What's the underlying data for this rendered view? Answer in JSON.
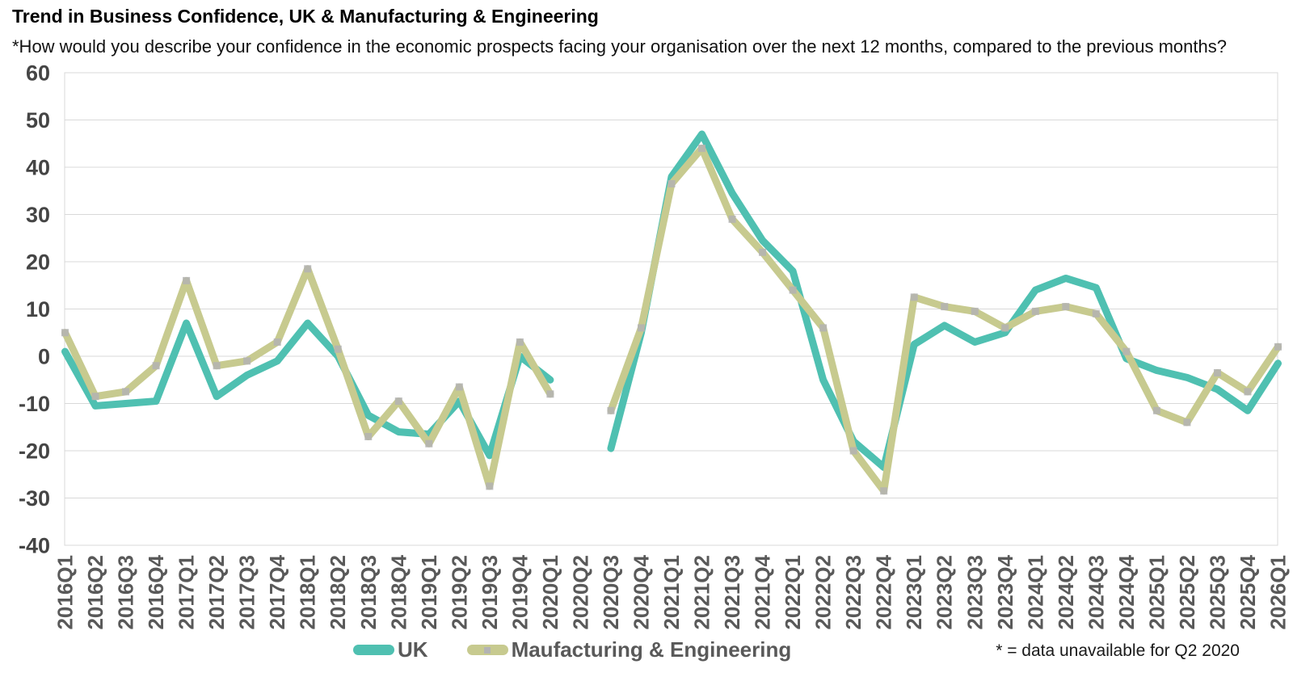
{
  "header": {
    "title": "Trend in Business Confidence, UK & Manufacturing & Engineering",
    "subtitle": "*How would you describe your confidence in the economic prospects facing your organisation over the next 12 months, compared to the previous months?"
  },
  "footnote": "* = data unavailable for Q2 2020",
  "chart_data": {
    "type": "line",
    "title": "Trend in Business Confidence, UK & Manufacturing & Engineering",
    "categories": [
      "2016Q1",
      "2016Q2",
      "2016Q3",
      "2016Q4",
      "2017Q1",
      "2017Q2",
      "2017Q3",
      "2017Q4",
      "2018Q1",
      "2018Q2",
      "2018Q3",
      "2018Q4",
      "2019Q1",
      "2019Q2",
      "2019Q3",
      "2019Q4",
      "2020Q1",
      "2020Q2",
      "2020Q3",
      "2020Q4",
      "2021Q1",
      "2021Q2",
      "2021Q3",
      "2021Q4",
      "2022Q1",
      "2022Q2",
      "2022Q3",
      "2022Q4",
      "2023Q1",
      "2023Q2",
      "2023Q3",
      "2023Q4",
      "2024Q1",
      "2024Q2",
      "2024Q3",
      "2024Q4",
      "2025Q1",
      "2025Q2",
      "2025Q3",
      "2025Q4",
      "2026Q1"
    ],
    "series": [
      {
        "name": "UK",
        "color": "#4fc0b1",
        "values": [
          1,
          -10.5,
          -10,
          -9.5,
          7,
          -8.5,
          -4,
          -1,
          7,
          0,
          -12.5,
          -16,
          -16.5,
          -9.5,
          -21,
          0,
          -5,
          null,
          -19.5,
          5,
          38,
          47,
          34.5,
          24.5,
          18,
          -5,
          -18,
          -23.5,
          2.5,
          6.5,
          3,
          5,
          14,
          16.5,
          14.5,
          -0.5,
          -3,
          -4.5,
          -7,
          -11.5,
          -1.5
        ]
      },
      {
        "name": "Maufacturing & Engineering",
        "color": "#c7ca8f",
        "marker": {
          "shape": "square",
          "color": "#b3b3b3"
        },
        "values": [
          5,
          -8.5,
          -7.5,
          -2,
          16,
          -2,
          -1,
          3,
          18.5,
          1.5,
          -17,
          -9.5,
          -18.5,
          -6.5,
          -27.5,
          3,
          -8,
          null,
          -11.5,
          6,
          36.5,
          44,
          29,
          22,
          14,
          6,
          -20,
          -28.5,
          12.5,
          10.5,
          9.5,
          6,
          9.5,
          10.5,
          9,
          1,
          -11.5,
          -14,
          -3.5,
          -7.5,
          2
        ]
      }
    ],
    "yticks": [
      60,
      50,
      40,
      30,
      20,
      10,
      0,
      -10,
      -20,
      -30,
      -40
    ],
    "ylim": [
      -40,
      60
    ],
    "xlabel": "",
    "ylabel": "",
    "grid": true,
    "gridline_color": "#d9d9d9",
    "ytick_label_color": "#454545",
    "xtick_label_color": "#595959",
    "legend_position": "bottom",
    "missing_data": {
      "category": "2020Q2",
      "note": "* = data unavailable for Q2 2020"
    }
  }
}
